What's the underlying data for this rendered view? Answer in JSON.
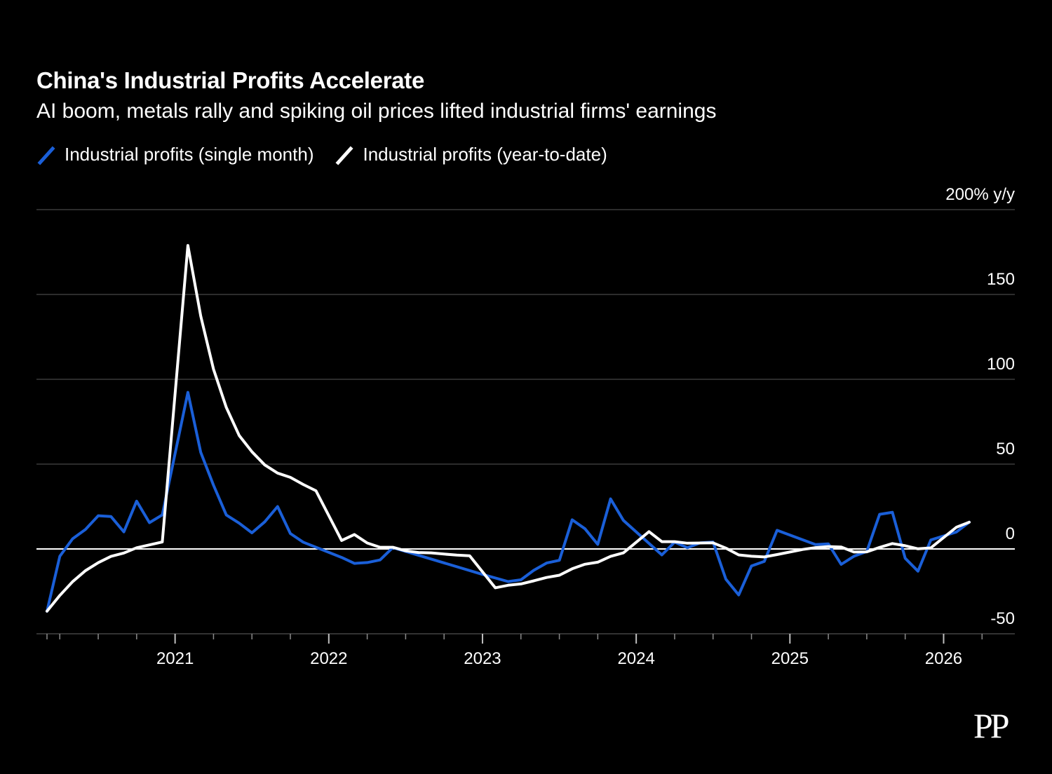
{
  "title": "China's Industrial Profits Accelerate",
  "subtitle": "AI boom, metals rally and spiking oil prices lifted industrial firms' earnings",
  "legend": {
    "single_month_label": "Industrial profits (single month)",
    "ytd_label": "Industrial profits (year-to-date)"
  },
  "logo_text": "PP",
  "colors": {
    "background": "#000000",
    "single_month": "#1a5fd8",
    "ytd": "#ffffff",
    "grid": "#3a3a3a",
    "zero_line": "#ffffff"
  },
  "chart_data": {
    "type": "line",
    "y_unit_label": "200% y/y",
    "y_ticks": [
      {
        "value": 150,
        "label": "150"
      },
      {
        "value": 100,
        "label": "100"
      },
      {
        "value": 50,
        "label": "50"
      },
      {
        "value": 0,
        "label": "0"
      },
      {
        "value": -50,
        "label": "-50"
      }
    ],
    "ylim": [
      -50,
      200
    ],
    "x_range": [
      "2020-03",
      "2026-06"
    ],
    "x_ticks": [
      {
        "date": "2021-01",
        "label": "2021"
      },
      {
        "date": "2022-01",
        "label": "2022"
      },
      {
        "date": "2023-01",
        "label": "2023"
      },
      {
        "date": "2024-01",
        "label": "2024"
      },
      {
        "date": "2025-01",
        "label": "2025"
      },
      {
        "date": "2026-01",
        "label": "2026"
      }
    ],
    "grid": true,
    "legend_position": "top-left",
    "series": [
      {
        "name": "Industrial profits (single month)",
        "color": "#1a5fd8",
        "points": [
          [
            "2020-03",
            -36.7
          ],
          [
            "2020-04",
            -4.3
          ],
          [
            "2020-05",
            6.0
          ],
          [
            "2020-06",
            11.5
          ],
          [
            "2020-07",
            19.6
          ],
          [
            "2020-08",
            19.1
          ],
          [
            "2020-09",
            10.1
          ],
          [
            "2020-10",
            28.2
          ],
          [
            "2020-11",
            15.5
          ],
          [
            "2020-12",
            20.1
          ],
          [
            "2021-02",
            92.3
          ],
          [
            "2021-03",
            57.0
          ],
          [
            "2021-04",
            37.6
          ],
          [
            "2021-05",
            20.0
          ],
          [
            "2021-06",
            15.2
          ],
          [
            "2021-07",
            9.5
          ],
          [
            "2021-08",
            16.0
          ],
          [
            "2021-09",
            25.0
          ],
          [
            "2021-10",
            9.1
          ],
          [
            "2021-11",
            4.0
          ],
          [
            "2022-02",
            -5.0
          ],
          [
            "2022-03",
            -8.5
          ],
          [
            "2022-04",
            -8.0
          ],
          [
            "2022-05",
            -6.5
          ],
          [
            "2022-06",
            0.8
          ],
          [
            "2023-01",
            -15.0
          ],
          [
            "2023-03",
            -19.2
          ],
          [
            "2023-04",
            -18.2
          ],
          [
            "2023-05",
            -12.6
          ],
          [
            "2023-06",
            -8.3
          ],
          [
            "2023-07",
            -6.7
          ],
          [
            "2023-08",
            17.2
          ],
          [
            "2023-09",
            11.9
          ],
          [
            "2023-10",
            2.7
          ],
          [
            "2023-11",
            29.5
          ],
          [
            "2023-12",
            16.8
          ],
          [
            "2024-03",
            -3.5
          ],
          [
            "2024-04",
            4.0
          ],
          [
            "2024-05",
            0.7
          ],
          [
            "2024-06",
            3.6
          ],
          [
            "2024-07",
            4.1
          ],
          [
            "2024-08",
            -17.8
          ],
          [
            "2024-09",
            -27.1
          ],
          [
            "2024-10",
            -10.0
          ],
          [
            "2024-11",
            -7.3
          ],
          [
            "2024-12",
            11.0
          ],
          [
            "2025-03",
            2.6
          ],
          [
            "2025-04",
            3.0
          ],
          [
            "2025-05",
            -9.1
          ],
          [
            "2025-06",
            -4.3
          ],
          [
            "2025-07",
            -1.5
          ],
          [
            "2025-08",
            20.4
          ],
          [
            "2025-09",
            21.6
          ],
          [
            "2025-10",
            -5.5
          ],
          [
            "2025-11",
            -13.1
          ],
          [
            "2025-12",
            5.3
          ],
          [
            "2026-02",
            10.0
          ],
          [
            "2026-03",
            15.8
          ]
        ]
      },
      {
        "name": "Industrial profits (year-to-date)",
        "color": "#ffffff",
        "points": [
          [
            "2020-03",
            -36.7
          ],
          [
            "2020-04",
            -27.4
          ],
          [
            "2020-05",
            -19.3
          ],
          [
            "2020-06",
            -12.8
          ],
          [
            "2020-07",
            -8.1
          ],
          [
            "2020-08",
            -4.4
          ],
          [
            "2020-09",
            -2.4
          ],
          [
            "2020-10",
            0.7
          ],
          [
            "2020-11",
            2.4
          ],
          [
            "2020-12",
            4.1
          ],
          [
            "2021-02",
            178.9
          ],
          [
            "2021-03",
            137.3
          ],
          [
            "2021-04",
            106.0
          ],
          [
            "2021-05",
            83.4
          ],
          [
            "2021-06",
            66.9
          ],
          [
            "2021-07",
            57.3
          ],
          [
            "2021-08",
            49.5
          ],
          [
            "2021-09",
            44.7
          ],
          [
            "2021-10",
            42.2
          ],
          [
            "2021-11",
            38.0
          ],
          [
            "2021-12",
            34.3
          ],
          [
            "2022-02",
            5.0
          ],
          [
            "2022-03",
            8.5
          ],
          [
            "2022-04",
            3.5
          ],
          [
            "2022-05",
            1.0
          ],
          [
            "2022-06",
            1.0
          ],
          [
            "2022-07",
            -1.1
          ],
          [
            "2022-08",
            -2.1
          ],
          [
            "2022-09",
            -2.3
          ],
          [
            "2022-10",
            -3.0
          ],
          [
            "2022-11",
            -3.6
          ],
          [
            "2022-12",
            -4.0
          ],
          [
            "2023-02",
            -22.9
          ],
          [
            "2023-03",
            -21.4
          ],
          [
            "2023-04",
            -20.6
          ],
          [
            "2023-05",
            -18.8
          ],
          [
            "2023-06",
            -16.8
          ],
          [
            "2023-07",
            -15.5
          ],
          [
            "2023-08",
            -11.7
          ],
          [
            "2023-09",
            -9.0
          ],
          [
            "2023-10",
            -7.8
          ],
          [
            "2023-11",
            -4.4
          ],
          [
            "2023-12",
            -2.3
          ],
          [
            "2024-02",
            10.2
          ],
          [
            "2024-03",
            4.3
          ],
          [
            "2024-04",
            4.3
          ],
          [
            "2024-05",
            3.4
          ],
          [
            "2024-06",
            3.5
          ],
          [
            "2024-07",
            3.6
          ],
          [
            "2024-08",
            0.5
          ],
          [
            "2024-09",
            -3.5
          ],
          [
            "2024-10",
            -4.3
          ],
          [
            "2024-11",
            -4.7
          ],
          [
            "2024-12",
            -3.3
          ],
          [
            "2025-02",
            -0.3
          ],
          [
            "2025-03",
            0.8
          ],
          [
            "2025-04",
            1.4
          ],
          [
            "2025-05",
            1.1
          ],
          [
            "2025-06",
            -1.8
          ],
          [
            "2025-07",
            -1.7
          ],
          [
            "2025-08",
            0.9
          ],
          [
            "2025-09",
            3.2
          ],
          [
            "2025-10",
            1.9
          ],
          [
            "2025-11",
            0.1
          ],
          [
            "2025-12",
            0.6
          ],
          [
            "2026-02",
            12.8
          ],
          [
            "2026-03",
            15.8
          ]
        ]
      }
    ]
  }
}
